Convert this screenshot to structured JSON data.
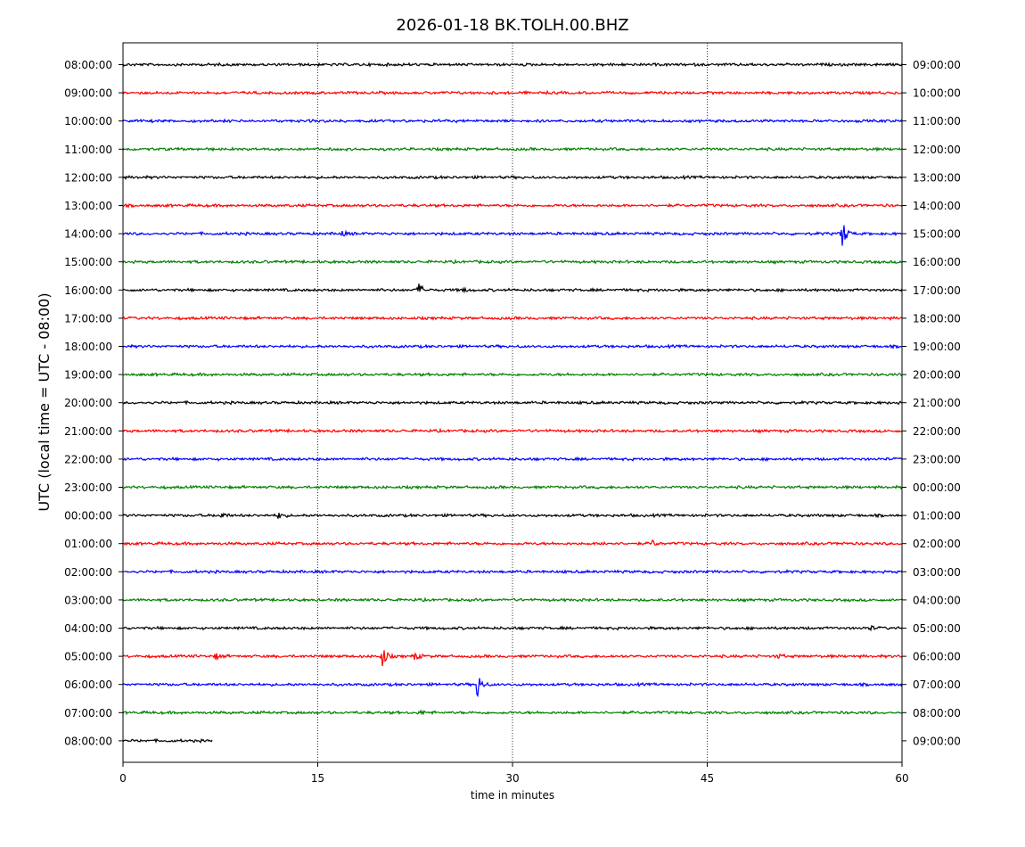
{
  "chart_data": {
    "type": "line",
    "title": "2026-01-18 BK.TOLH.00.BHZ",
    "xlabel": "time in minutes",
    "ylabel": "UTC (local time = UTC - 08:00)",
    "xlim": [
      0,
      60
    ],
    "x_ticks": [
      0,
      15,
      30,
      45,
      60
    ],
    "x_tick_labels": [
      "0",
      "15",
      "30",
      "45",
      "60"
    ],
    "grid": "vertical dotted",
    "color_cycle": [
      "#000000",
      "#ff0000",
      "#0000ff",
      "#008000"
    ],
    "rows": [
      {
        "left_label": "08:00:00",
        "right_label": "09:00:00",
        "end_minute": 60,
        "events": []
      },
      {
        "left_label": "09:00:00",
        "right_label": "10:00:00",
        "end_minute": 60,
        "events": []
      },
      {
        "left_label": "10:00:00",
        "right_label": "11:00:00",
        "end_minute": 60,
        "events": []
      },
      {
        "left_label": "11:00:00",
        "right_label": "12:00:00",
        "end_minute": 60,
        "events": []
      },
      {
        "left_label": "12:00:00",
        "right_label": "13:00:00",
        "end_minute": 60,
        "events": []
      },
      {
        "left_label": "13:00:00",
        "right_label": "14:00:00",
        "end_minute": 60,
        "events": []
      },
      {
        "left_label": "14:00:00",
        "right_label": "15:00:00",
        "end_minute": 60,
        "events": [
          {
            "minute": 16.8,
            "amp": 0.15
          },
          {
            "minute": 55.4,
            "amp": 0.75
          }
        ]
      },
      {
        "left_label": "15:00:00",
        "right_label": "16:00:00",
        "end_minute": 60,
        "events": []
      },
      {
        "left_label": "16:00:00",
        "right_label": "17:00:00",
        "end_minute": 60,
        "events": [
          {
            "minute": 22.8,
            "amp": 0.3
          },
          {
            "minute": 26.2,
            "amp": 0.1
          }
        ]
      },
      {
        "left_label": "17:00:00",
        "right_label": "18:00:00",
        "end_minute": 60,
        "events": []
      },
      {
        "left_label": "18:00:00",
        "right_label": "19:00:00",
        "end_minute": 60,
        "events": []
      },
      {
        "left_label": "19:00:00",
        "right_label": "20:00:00",
        "end_minute": 60,
        "events": []
      },
      {
        "left_label": "20:00:00",
        "right_label": "21:00:00",
        "end_minute": 60,
        "events": []
      },
      {
        "left_label": "21:00:00",
        "right_label": "22:00:00",
        "end_minute": 60,
        "events": []
      },
      {
        "left_label": "22:00:00",
        "right_label": "23:00:00",
        "end_minute": 60,
        "events": []
      },
      {
        "left_label": "23:00:00",
        "right_label": "00:00:00",
        "end_minute": 60,
        "events": []
      },
      {
        "left_label": "00:00:00",
        "right_label": "01:00:00",
        "end_minute": 60,
        "events": [
          {
            "minute": 7.5,
            "amp": 0.18
          },
          {
            "minute": 12.0,
            "amp": 0.15
          }
        ]
      },
      {
        "left_label": "01:00:00",
        "right_label": "02:00:00",
        "end_minute": 60,
        "events": [
          {
            "minute": 37.0,
            "amp": 0.08
          },
          {
            "minute": 40.8,
            "amp": 0.15
          },
          {
            "minute": 55.2,
            "amp": 0.08
          }
        ]
      },
      {
        "left_label": "02:00:00",
        "right_label": "03:00:00",
        "end_minute": 60,
        "events": []
      },
      {
        "left_label": "03:00:00",
        "right_label": "04:00:00",
        "end_minute": 60,
        "events": []
      },
      {
        "left_label": "04:00:00",
        "right_label": "05:00:00",
        "end_minute": 60,
        "events": [
          {
            "minute": 57.5,
            "amp": 0.1
          }
        ]
      },
      {
        "left_label": "05:00:00",
        "right_label": "06:00:00",
        "end_minute": 60,
        "events": [
          {
            "minute": 7.2,
            "amp": 0.15
          },
          {
            "minute": 20.0,
            "amp": 0.5
          },
          {
            "minute": 22.5,
            "amp": 0.2
          },
          {
            "minute": 50.5,
            "amp": 0.1
          }
        ]
      },
      {
        "left_label": "06:00:00",
        "right_label": "07:00:00",
        "end_minute": 60,
        "events": [
          {
            "minute": 27.3,
            "amp": 0.65
          }
        ]
      },
      {
        "left_label": "07:00:00",
        "right_label": "08:00:00",
        "end_minute": 60,
        "events": [
          {
            "minute": 23.0,
            "amp": 0.08
          }
        ]
      },
      {
        "left_label": "08:00:00",
        "right_label": "09:00:00",
        "end_minute": 6.9,
        "events": []
      }
    ]
  }
}
